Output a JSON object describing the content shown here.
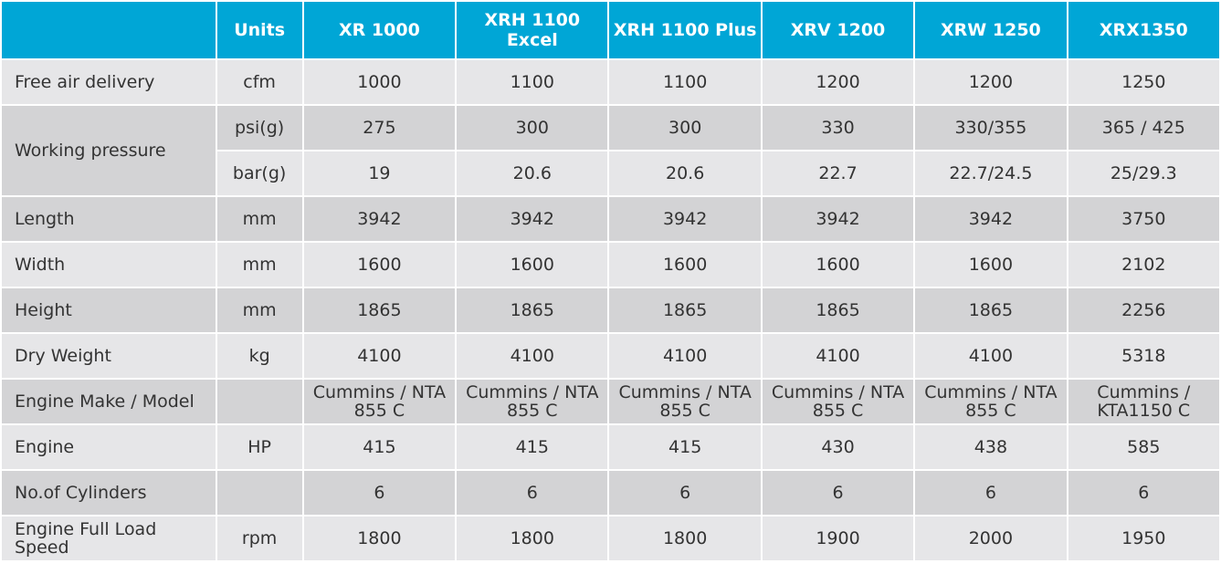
{
  "header": {
    "corner": "",
    "units": "Units",
    "models": [
      "XR 1000",
      "XRH 1100 Excel",
      "XRH 1100 Plus",
      "XRV 1200",
      "XRW 1250",
      "XRX1350"
    ]
  },
  "rows": {
    "free_air": {
      "label": "Free air delivery",
      "unit": "cfm",
      "values": [
        "1000",
        "1100",
        "1100",
        "1200",
        "1200",
        "1250"
      ]
    },
    "pressure_psi": {
      "label": "Working pressure",
      "unit": "psi(g)",
      "values": [
        "275",
        "300",
        "300",
        "330",
        "330/355",
        "365 / 425"
      ]
    },
    "pressure_bar": {
      "unit": "bar(g)",
      "values": [
        "19",
        "20.6",
        "20.6",
        "22.7",
        "22.7/24.5",
        "25/29.3"
      ]
    },
    "length": {
      "label": "Length",
      "unit": "mm",
      "values": [
        "3942",
        "3942",
        "3942",
        "3942",
        "3942",
        "3750"
      ]
    },
    "width": {
      "label": "Width",
      "unit": "mm",
      "values": [
        "1600",
        "1600",
        "1600",
        "1600",
        "1600",
        "2102"
      ]
    },
    "height": {
      "label": "Height",
      "unit": "mm",
      "values": [
        "1865",
        "1865",
        "1865",
        "1865",
        "1865",
        "2256"
      ]
    },
    "dry_weight": {
      "label": "Dry Weight",
      "unit": "kg",
      "values": [
        "4100",
        "4100",
        "4100",
        "4100",
        "4100",
        "5318"
      ]
    },
    "engine_model": {
      "label": "Engine Make / Model",
      "unit": "",
      "values": [
        [
          "Cummins / NTA",
          "855 C"
        ],
        [
          "Cummins / NTA",
          "855 C"
        ],
        [
          "Cummins / NTA",
          "855 C"
        ],
        [
          "Cummins / NTA",
          "855 C"
        ],
        [
          "Cummins / NTA",
          "855 C"
        ],
        [
          "Cummins /",
          "KTA1150 C"
        ]
      ]
    },
    "engine_hp": {
      "label": "Engine",
      "unit": "HP",
      "values": [
        "415",
        "415",
        "415",
        "430",
        "438",
        "585"
      ]
    },
    "cylinders": {
      "label": "No.of Cylinders",
      "unit": "",
      "values": [
        "6",
        "6",
        "6",
        "6",
        "6",
        "6"
      ]
    },
    "speed": {
      "label": "Engine Full Load Speed",
      "unit": "rpm",
      "values": [
        "1800",
        "1800",
        "1800",
        "1900",
        "2000",
        "1950"
      ]
    }
  }
}
